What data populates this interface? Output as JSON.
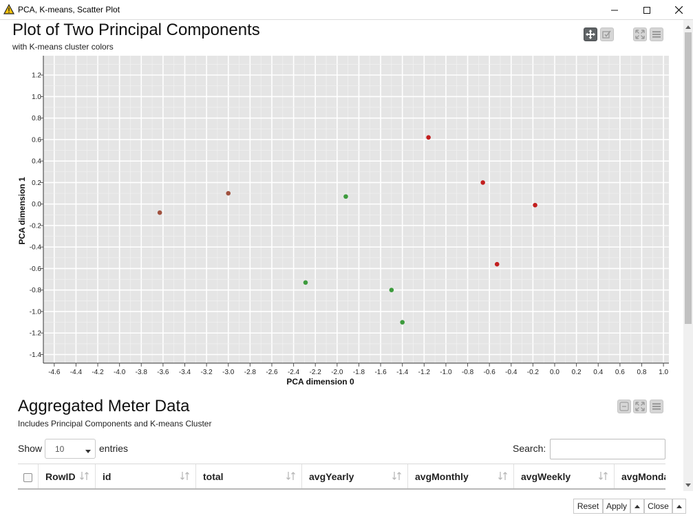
{
  "window": {
    "title": "PCA, K-means, Scatter Plot"
  },
  "plot": {
    "title": "Plot of Two Principal Components",
    "subtitle": "with K-means cluster colors",
    "toolbar": [
      "pan-icon",
      "select-icon",
      "fullscreen-icon",
      "menu-icon"
    ]
  },
  "chart_data": {
    "type": "scatter",
    "title": "Plot of Two Principal Components",
    "subtitle": "with K-means cluster colors",
    "xlabel": "PCA dimension 0",
    "ylabel": "PCA dimension 1",
    "xlim": [
      -4.7,
      1.05
    ],
    "ylim": [
      -1.48,
      1.38
    ],
    "x_ticks": [
      "-4.6",
      "-4.4",
      "-4.2",
      "-4.0",
      "-3.8",
      "-3.6",
      "-3.4",
      "-3.2",
      "-3.0",
      "-2.8",
      "-2.6",
      "-2.4",
      "-2.2",
      "-2.0",
      "-1.8",
      "-1.6",
      "-1.4",
      "-1.2",
      "-1.0",
      "-0.8",
      "-0.6",
      "-0.4",
      "-0.2",
      "0.0",
      "0.2",
      "0.4",
      "0.6",
      "0.8",
      "1.0"
    ],
    "y_ticks": [
      "1.2",
      "1.0",
      "0.8",
      "0.6",
      "0.4",
      "0.2",
      "0.0",
      "-0.2",
      "-0.4",
      "-0.6",
      "-0.8",
      "-1.0",
      "-1.2",
      "-1.4"
    ],
    "grid": true,
    "series": [
      {
        "color": "#a0523f",
        "points": [
          [
            -3.63,
            -0.08
          ],
          [
            -3.0,
            0.1
          ]
        ]
      },
      {
        "color": "#3d9b3d",
        "points": [
          [
            -1.92,
            0.07
          ],
          [
            -2.29,
            -0.73
          ],
          [
            -1.5,
            -0.8
          ],
          [
            -1.4,
            -1.1
          ]
        ]
      },
      {
        "color": "#c21f1f",
        "points": [
          [
            -1.16,
            0.62
          ],
          [
            -0.66,
            0.2
          ],
          [
            -0.18,
            -0.01
          ],
          [
            -0.53,
            -0.56
          ]
        ]
      }
    ]
  },
  "table": {
    "title": "Aggregated Meter Data",
    "subtitle": "Includes Principal Components and K-means Cluster",
    "show_label": "Show",
    "entries_value": "10",
    "entries_label": "entries",
    "search_label": "Search:",
    "search_value": "",
    "columns": [
      "RowID",
      "id",
      "total",
      "avgYearly",
      "avgMonthly",
      "avgWeekly",
      "avgMonda"
    ]
  },
  "footer": {
    "reset": "Reset",
    "apply": "Apply",
    "close": "Close"
  }
}
